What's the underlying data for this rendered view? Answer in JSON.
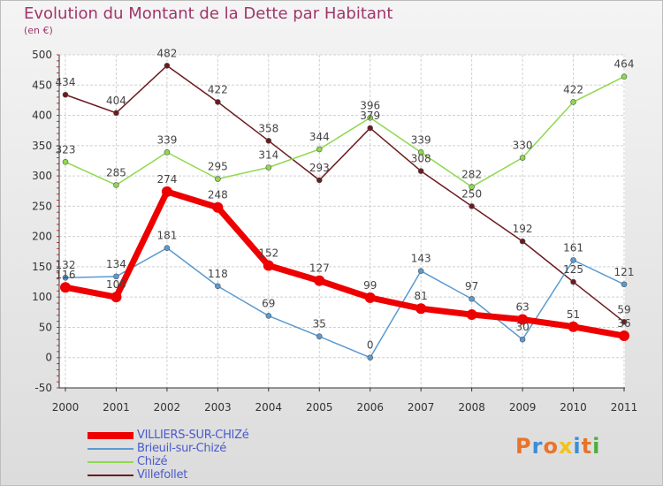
{
  "header": {
    "title": "Evolution du Montant de la Dette par Habitant",
    "subtitle": "(en €)"
  },
  "brand": {
    "text": "Proxiti",
    "colors": [
      "#e9742a",
      "#3a8fd6",
      "#e9742a",
      "#f2c21a",
      "#3a8fd6",
      "#e9742a",
      "#4fae3c"
    ]
  },
  "chart_data": {
    "type": "line",
    "title": "Evolution du Montant de la Dette par Habitant",
    "ylabel": "(en €)",
    "xlabel": "",
    "x": [
      "2000",
      "2001",
      "2002",
      "2003",
      "2004",
      "2005",
      "2006",
      "2007",
      "2008",
      "2009",
      "2010",
      "2011"
    ],
    "ylim": [
      -50,
      500
    ],
    "yticks": [
      -50,
      0,
      50,
      100,
      150,
      200,
      250,
      300,
      350,
      400,
      450,
      500
    ],
    "grid": true,
    "legend_position": "bottom-left",
    "series": [
      {
        "name": "VILLIERS-SUR-CHIZé",
        "color": "#ee0000",
        "width": 7,
        "values": [
          116,
          100,
          274,
          248,
          152,
          127,
          99,
          81,
          71,
          63,
          51,
          36
        ],
        "labels": [
          "116",
          "100",
          "274",
          "248",
          "152",
          "127",
          "99",
          "81",
          "",
          "63",
          "51",
          "36"
        ]
      },
      {
        "name": "Brieuil-sur-Chizé",
        "color": "#5a9ad0",
        "width": 1.5,
        "values": [
          132,
          134,
          181,
          118,
          69,
          35,
          0,
          143,
          97,
          30,
          161,
          121
        ],
        "labels": [
          "132",
          "134",
          "181",
          "118",
          "69",
          "35",
          "0",
          "143",
          "97",
          "30",
          "161",
          "121"
        ]
      },
      {
        "name": "Chizé",
        "color": "#8fd84e",
        "width": 1.5,
        "values": [
          323,
          285,
          339,
          295,
          314,
          344,
          396,
          339,
          282,
          330,
          422,
          464
        ],
        "labels": [
          "323",
          "285",
          "339",
          "295",
          "314",
          "344",
          "396",
          "339",
          "282",
          "330",
          "422",
          "464"
        ]
      },
      {
        "name": "Villefollet",
        "color": "#6b1b20",
        "width": 1.5,
        "values": [
          434,
          404,
          482,
          422,
          358,
          293,
          379,
          308,
          250,
          192,
          125,
          59
        ],
        "labels": [
          "434",
          "404",
          "482",
          "422",
          "358",
          "293",
          "379",
          "308",
          "250",
          "192",
          "125",
          "59"
        ]
      }
    ]
  }
}
